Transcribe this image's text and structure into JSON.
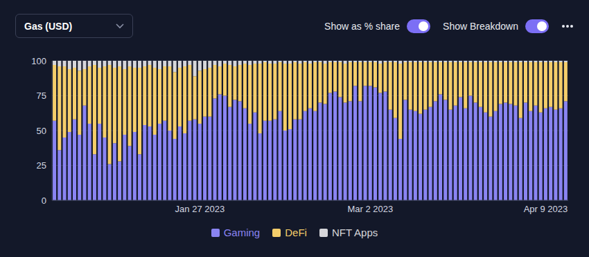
{
  "controls": {
    "dropdown": "Gas (USD)",
    "toggles": [
      "Show as % share",
      "Show Breakdown"
    ]
  },
  "chart_data": {
    "type": "bar",
    "stacked": true,
    "grid": true,
    "legend": "bottom",
    "categories": [
      null,
      null,
      null,
      null,
      null,
      null,
      null,
      null,
      null,
      null,
      null,
      null,
      null,
      null,
      null,
      null,
      null,
      null,
      null,
      null,
      null,
      null,
      null,
      null,
      null,
      null,
      null,
      null,
      null,
      "Jan 27 2023",
      null,
      null,
      null,
      null,
      null,
      null,
      null,
      null,
      null,
      null,
      null,
      null,
      null,
      null,
      null,
      null,
      null,
      null,
      null,
      null,
      null,
      null,
      null,
      null,
      null,
      null,
      null,
      null,
      null,
      null,
      null,
      null,
      null,
      "Mar 2 2023",
      null,
      null,
      null,
      null,
      null,
      null,
      null,
      null,
      null,
      null,
      null,
      null,
      null,
      null,
      null,
      null,
      null,
      null,
      null,
      null,
      null,
      null,
      null,
      null,
      null,
      null,
      null,
      null,
      null,
      null,
      null,
      null,
      null,
      null,
      "Apr 9 2023",
      null,
      null,
      null,
      null
    ],
    "ylim": [
      0,
      100
    ],
    "yticks": [
      0,
      25,
      50,
      75,
      100
    ],
    "series": [
      {
        "name": "Gaming",
        "color": "#8a84f2",
        "values": [
          57,
          36,
          45,
          49,
          58,
          47,
          68,
          55,
          33,
          55,
          45,
          26,
          41,
          28,
          47,
          39,
          49,
          33,
          54,
          53,
          47,
          55,
          57,
          50,
          44,
          53,
          48,
          57,
          58,
          55,
          60,
          60,
          73,
          76,
          75,
          67,
          72,
          71,
          66,
          55,
          63,
          48,
          57,
          57,
          58,
          64,
          50,
          51,
          58,
          58,
          64,
          66,
          64,
          70,
          69,
          77,
          78,
          74,
          70,
          71,
          82,
          71,
          82,
          82,
          81,
          77,
          78,
          65,
          59,
          44,
          72,
          65,
          64,
          62,
          65,
          67,
          71,
          76,
          72,
          65,
          68,
          74,
          66,
          75,
          70,
          67,
          63,
          60,
          64,
          69,
          70,
          69,
          68,
          59,
          70,
          64,
          68,
          63,
          66,
          67,
          65,
          66,
          71
        ]
      },
      {
        "name": "DeFi",
        "color": "#f4cd6a",
        "values": [
          40,
          60,
          51,
          45,
          37,
          46,
          26,
          41,
          64,
          40,
          51,
          71,
          54,
          68,
          47,
          57,
          46,
          62,
          42,
          44,
          48,
          39,
          39,
          46,
          48,
          42,
          48,
          40,
          31,
          38,
          34,
          35,
          24,
          20,
          23,
          30,
          24,
          26,
          32,
          42,
          35,
          50,
          42,
          41,
          40,
          35,
          48,
          47,
          41,
          40,
          35,
          32,
          35,
          29,
          29,
          22,
          21,
          25,
          28,
          28,
          17,
          28,
          17,
          17,
          18,
          21,
          21,
          34,
          40,
          54,
          27,
          34,
          35,
          37,
          34,
          32,
          28,
          23,
          27,
          34,
          31,
          25,
          33,
          24,
          29,
          32,
          36,
          39,
          35,
          30,
          29,
          30,
          31,
          40,
          29,
          35,
          31,
          36,
          33,
          32,
          34,
          33,
          28
        ]
      },
      {
        "name": "NFT Apps",
        "color": "#d6d6da",
        "values": [
          3,
          4,
          4,
          6,
          5,
          7,
          6,
          4,
          3,
          5,
          4,
          3,
          5,
          4,
          6,
          4,
          5,
          5,
          4,
          3,
          5,
          6,
          4,
          4,
          8,
          5,
          4,
          3,
          11,
          7,
          6,
          5,
          3,
          4,
          2,
          3,
          4,
          3,
          2,
          3,
          2,
          2,
          1,
          2,
          2,
          1,
          2,
          2,
          1,
          2,
          1,
          2,
          1,
          1,
          2,
          1,
          1,
          1,
          2,
          1,
          1,
          1,
          1,
          1,
          1,
          2,
          1,
          1,
          1,
          2,
          1,
          1,
          1,
          1,
          1,
          1,
          1,
          1,
          1,
          1,
          1,
          1,
          1,
          1,
          1,
          1,
          1,
          1,
          1,
          1,
          1,
          1,
          1,
          1,
          1,
          1,
          1,
          1,
          1,
          1,
          1,
          1,
          1
        ]
      }
    ]
  }
}
